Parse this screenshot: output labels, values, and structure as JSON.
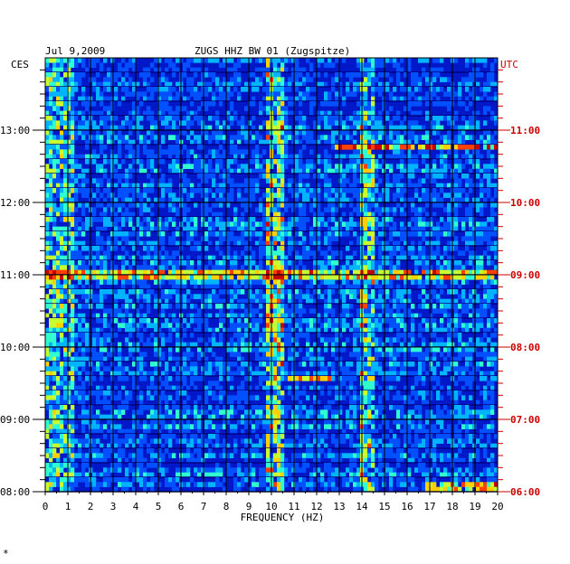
{
  "chart_data": {
    "type": "heatmap",
    "header": {
      "date": "Jul 9,2009",
      "station": "ZUGS HHZ BW 01 (Zugspitze)"
    },
    "left_axis": {
      "label": "CES",
      "ticks": [
        "08:00",
        "09:00",
        "10:00",
        "11:00",
        "12:00",
        "13:00"
      ],
      "tick_hours": [
        8,
        9,
        10,
        11,
        12,
        13
      ],
      "range_hours": [
        8,
        14
      ],
      "color": "#000000"
    },
    "right_axis": {
      "label": "UTC",
      "ticks": [
        "06:00",
        "07:00",
        "08:00",
        "09:00",
        "10:00",
        "11:00"
      ],
      "tick_hours": [
        6,
        7,
        8,
        9,
        10,
        11
      ],
      "range_hours": [
        6,
        12
      ],
      "color": "#cc0000"
    },
    "x_axis": {
      "label": "FREQUENCY (HZ)",
      "ticks": [
        "0",
        "1",
        "2",
        "3",
        "4",
        "5",
        "6",
        "7",
        "8",
        "9",
        "10",
        "11",
        "12",
        "13",
        "14",
        "15",
        "16",
        "17",
        "18",
        "19",
        "20"
      ],
      "range": [
        0,
        20
      ]
    },
    "footer_mark": "*",
    "grid": true,
    "colorscale": [
      "#00007a",
      "#0018c8",
      "#0050ff",
      "#00b4ff",
      "#30ffd0",
      "#c8ff30",
      "#ffd000",
      "#ff4000",
      "#c80000"
    ],
    "background_color": "#0018c8",
    "rows_per_hour": 15,
    "rows": 90,
    "bands": [
      {
        "f_min": 9.8,
        "f_max": 10.6,
        "intensity": 0.55,
        "label": "10 Hz band"
      },
      {
        "f_min": 14.0,
        "f_max": 14.6,
        "intensity": 0.45,
        "label": "14.3 Hz band"
      },
      {
        "f_min": 0.0,
        "f_max": 1.2,
        "intensity": 0.4,
        "label": "low frequency band"
      }
    ],
    "events": [
      {
        "time_ces": "12:47",
        "f_min": 12.8,
        "f_max": 20.0,
        "intensity": 0.9
      },
      {
        "time_ces": "11:00",
        "f_min": 0.0,
        "f_max": 20.0,
        "intensity": 0.7
      },
      {
        "time_ces": "09:33",
        "f_min": 10.8,
        "f_max": 12.6,
        "intensity": 0.75
      },
      {
        "time_ces": "08:03",
        "f_min": 16.8,
        "f_max": 20.0,
        "intensity": 0.65
      }
    ]
  }
}
